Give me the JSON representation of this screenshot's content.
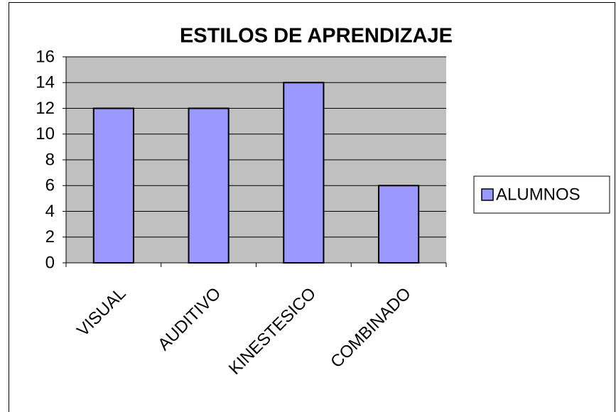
{
  "chart_data": {
    "type": "bar",
    "title": "ESTILOS DE APRENDIZAJE",
    "categories": [
      "VISUAL",
      "AUDITIVO",
      "KINESTESICO",
      "COMBINADO"
    ],
    "series": [
      {
        "name": "ALUMNOS",
        "color": "#9999ff",
        "values": [
          12,
          12,
          14,
          6
        ]
      }
    ],
    "ylim": [
      0,
      16
    ],
    "yticks": [
      0,
      2,
      4,
      6,
      8,
      10,
      12,
      14,
      16
    ],
    "grid": true,
    "legend": "right"
  }
}
